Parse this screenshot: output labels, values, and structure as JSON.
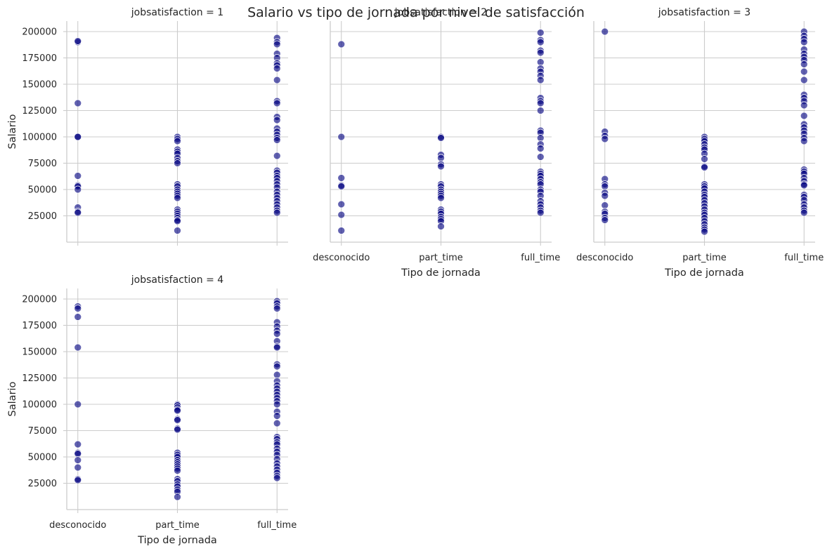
{
  "chart_data": {
    "type": "scatter",
    "title": "Salario vs tipo de jornada por nivel de satisfacción",
    "xlabel": "Tipo de jornada",
    "ylabel": "Salario",
    "categories": [
      "desconocido",
      "part_time",
      "full_time"
    ],
    "yticks": [
      25000,
      50000,
      75000,
      100000,
      125000,
      150000,
      175000,
      200000
    ],
    "ylim": [
      0,
      210000
    ],
    "grid": true,
    "point_color": "#000080",
    "panels": [
      {
        "title": "jobsatisfaction = 1",
        "points": {
          "desconocido": [
            190000,
            191000,
            132000,
            100000,
            100000,
            63000,
            54000,
            53000,
            50000,
            33000,
            29000,
            28000
          ],
          "part_time": [
            100000,
            98000,
            96000,
            88000,
            86000,
            84000,
            80000,
            77000,
            75000,
            55000,
            53000,
            50000,
            48000,
            46000,
            44000,
            42000,
            31000,
            29000,
            27000,
            25000,
            23000,
            21000,
            20000,
            11000
          ],
          "full_time": [
            194000,
            190000,
            188000,
            179000,
            175000,
            170000,
            168000,
            165000,
            154000,
            134000,
            132000,
            119000,
            116000,
            108000,
            105000,
            102000,
            99000,
            97000,
            82000,
            68000,
            66000,
            63000,
            61000,
            58000,
            55000,
            52000,
            48000,
            45000,
            42000,
            39000,
            36000,
            33000,
            30000,
            28000
          ]
        }
      },
      {
        "title": "jobsatisfaction = 2",
        "points": {
          "desconocido": [
            188000,
            100000,
            61000,
            54000,
            53000,
            36000,
            26000,
            11000
          ],
          "part_time": [
            100000,
            99000,
            83000,
            80000,
            74000,
            72000,
            55000,
            53000,
            50000,
            48000,
            46000,
            44000,
            42000,
            31000,
            29000,
            27000,
            24000,
            22000,
            20000,
            15000
          ],
          "full_time": [
            199000,
            192000,
            190000,
            182000,
            180000,
            171000,
            165000,
            162000,
            158000,
            154000,
            137000,
            134000,
            132000,
            125000,
            106000,
            104000,
            99000,
            93000,
            89000,
            81000,
            67000,
            65000,
            63000,
            60000,
            57000,
            55000,
            50000,
            48000,
            44000,
            39000,
            36000,
            33000,
            30000,
            28000
          ]
        }
      },
      {
        "title": "jobsatisfaction = 3",
        "points": {
          "desconocido": [
            200000,
            105000,
            101000,
            98000,
            60000,
            55000,
            53000,
            47000,
            44000,
            35000,
            29000,
            27000,
            23000,
            21000
          ],
          "part_time": [
            100000,
            98000,
            96000,
            93000,
            90000,
            88000,
            84000,
            79000,
            72000,
            71000,
            55000,
            53000,
            51000,
            48000,
            45000,
            43000,
            40000,
            37000,
            34000,
            31000,
            28000,
            26000,
            23000,
            20000,
            17000,
            14000,
            12000,
            10000
          ],
          "full_time": [
            200000,
            196000,
            193000,
            190000,
            183000,
            179000,
            176000,
            173000,
            169000,
            162000,
            154000,
            140000,
            137000,
            134000,
            130000,
            120000,
            112000,
            109000,
            106000,
            103000,
            99000,
            96000,
            69000,
            67000,
            65000,
            61000,
            58000,
            55000,
            54000,
            45000,
            43000,
            40000,
            36000,
            33000,
            30000,
            28000
          ]
        }
      },
      {
        "title": "jobsatisfaction = 4",
        "points": {
          "desconocido": [
            193000,
            191000,
            183000,
            154000,
            100000,
            62000,
            54000,
            53000,
            47000,
            40000,
            29000,
            28000
          ],
          "part_time": [
            100000,
            99000,
            97000,
            95000,
            94000,
            86000,
            85000,
            77000,
            76000,
            54000,
            52000,
            50000,
            47000,
            45000,
            43000,
            41000,
            39000,
            37000,
            29000,
            27000,
            24000,
            22000,
            19000,
            17000,
            12000
          ],
          "full_time": [
            198000,
            196000,
            193000,
            191000,
            178000,
            174000,
            170000,
            167000,
            160000,
            155000,
            154000,
            138000,
            136000,
            128000,
            122000,
            118000,
            115000,
            112000,
            109000,
            106000,
            103000,
            100000,
            93000,
            89000,
            82000,
            69000,
            67000,
            64000,
            62000,
            58000,
            55000,
            52000,
            48000,
            44000,
            41000,
            38000,
            35000,
            32000,
            30000
          ]
        }
      }
    ]
  }
}
